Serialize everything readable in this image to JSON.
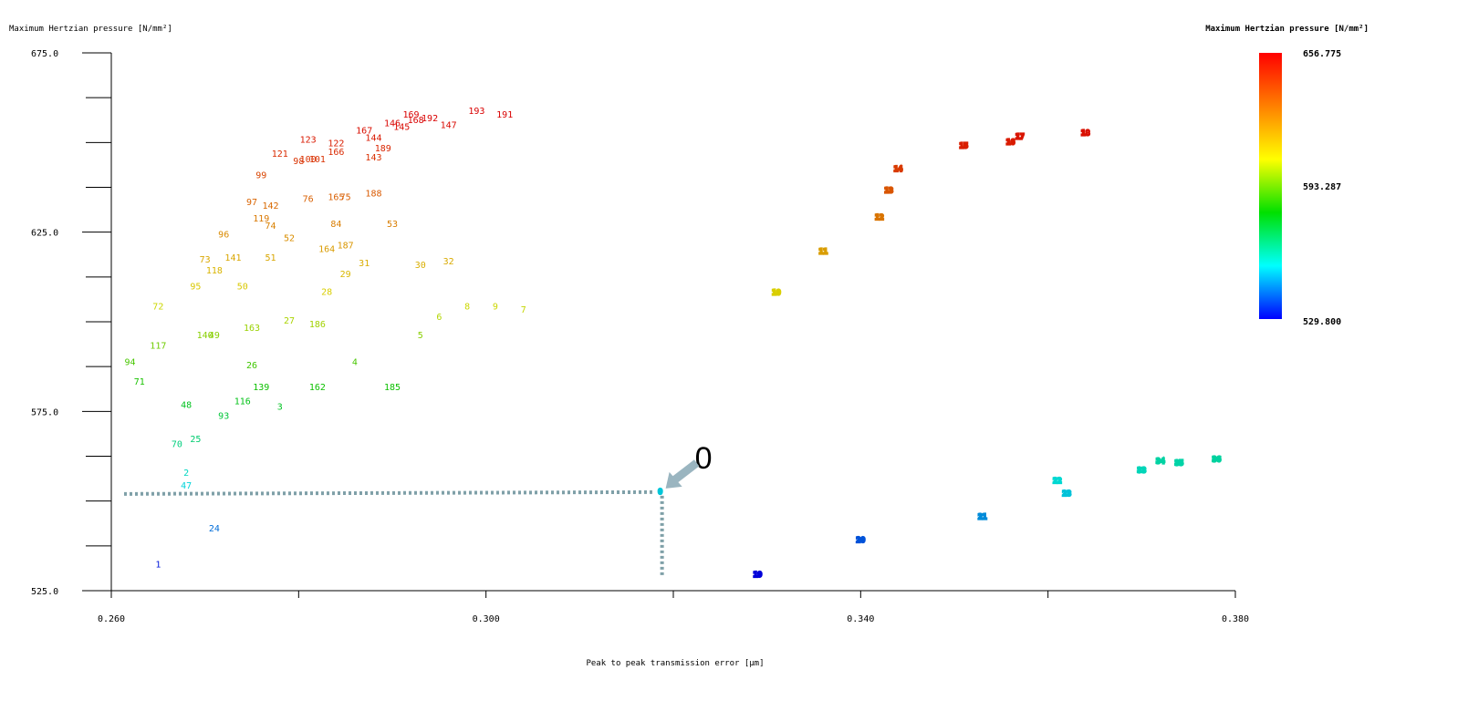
{
  "chart_data": {
    "type": "scatter",
    "title": "",
    "xlabel": "Peak to peak transmission error [μm]",
    "ylabel": "Maximum Hertzian pressure [N/mm²]",
    "xlim": [
      0.26,
      0.38
    ],
    "ylim": [
      525.0,
      675.0
    ],
    "x_ticks": [
      "0.260",
      "0.300",
      "0.340",
      "0.380"
    ],
    "y_ticks": [
      "675.0",
      "625.0",
      "575.0",
      "525.0"
    ],
    "colorbar": {
      "title": "Maximum Hertzian pressure [N/mm²]",
      "max": 656.775,
      "mid": 593.287,
      "min": 529.8,
      "max_label": "656.775",
      "mid_label": "593.287",
      "min_label": "529.800",
      "colors": [
        "#ff0000",
        "#ff8000",
        "#ffff00",
        "#00e000",
        "#00ffff",
        "#0000ff"
      ]
    },
    "annotation": {
      "label": "0",
      "x": 0.3186,
      "y": 553.0
    },
    "points": [
      {
        "label": "1",
        "x": 0.265,
        "y": 532.5
      },
      {
        "label": "24",
        "x": 0.271,
        "y": 542.5
      },
      {
        "label": "47",
        "x": 0.268,
        "y": 554.5
      },
      {
        "label": "2",
        "x": 0.268,
        "y": 558.0
      },
      {
        "label": "70",
        "x": 0.267,
        "y": 566.0
      },
      {
        "label": "25",
        "x": 0.269,
        "y": 567.5
      },
      {
        "label": "48",
        "x": 0.268,
        "y": 577.0
      },
      {
        "label": "93",
        "x": 0.272,
        "y": 574.0
      },
      {
        "label": "116",
        "x": 0.274,
        "y": 578.0
      },
      {
        "label": "3",
        "x": 0.278,
        "y": 576.5
      },
      {
        "label": "139",
        "x": 0.276,
        "y": 582.0
      },
      {
        "label": "162",
        "x": 0.282,
        "y": 582.0
      },
      {
        "label": "185",
        "x": 0.29,
        "y": 582.0
      },
      {
        "label": "71",
        "x": 0.263,
        "y": 583.5
      },
      {
        "label": "94",
        "x": 0.262,
        "y": 589.0
      },
      {
        "label": "26",
        "x": 0.275,
        "y": 588.0
      },
      {
        "label": "4",
        "x": 0.286,
        "y": 589.0
      },
      {
        "label": "117",
        "x": 0.265,
        "y": 593.5
      },
      {
        "label": "140",
        "x": 0.27,
        "y": 596.5
      },
      {
        "label": "49",
        "x": 0.271,
        "y": 596.5
      },
      {
        "label": "163",
        "x": 0.275,
        "y": 598.5
      },
      {
        "label": "27",
        "x": 0.279,
        "y": 600.5
      },
      {
        "label": "186",
        "x": 0.282,
        "y": 599.5
      },
      {
        "label": "5",
        "x": 0.293,
        "y": 596.5
      },
      {
        "label": "6",
        "x": 0.295,
        "y": 601.5
      },
      {
        "label": "8",
        "x": 0.298,
        "y": 604.5
      },
      {
        "label": "9",
        "x": 0.301,
        "y": 604.5
      },
      {
        "label": "7",
        "x": 0.304,
        "y": 603.5
      },
      {
        "label": "72",
        "x": 0.265,
        "y": 604.5
      },
      {
        "label": "95",
        "x": 0.269,
        "y": 610.0
      },
      {
        "label": "50",
        "x": 0.274,
        "y": 610.0
      },
      {
        "label": "28",
        "x": 0.283,
        "y": 608.5
      },
      {
        "label": "29",
        "x": 0.285,
        "y": 613.5
      },
      {
        "label": "73",
        "x": 0.27,
        "y": 617.5
      },
      {
        "label": "118",
        "x": 0.271,
        "y": 614.5
      },
      {
        "label": "141",
        "x": 0.273,
        "y": 618.0
      },
      {
        "label": "51",
        "x": 0.277,
        "y": 618.0
      },
      {
        "label": "31",
        "x": 0.287,
        "y": 616.5
      },
      {
        "label": "30",
        "x": 0.293,
        "y": 616.0
      },
      {
        "label": "32",
        "x": 0.296,
        "y": 617.0
      },
      {
        "label": "96",
        "x": 0.272,
        "y": 624.5
      },
      {
        "label": "52",
        "x": 0.279,
        "y": 623.5
      },
      {
        "label": "164",
        "x": 0.283,
        "y": 620.5
      },
      {
        "label": "187",
        "x": 0.285,
        "y": 621.5
      },
      {
        "label": "84",
        "x": 0.284,
        "y": 627.5
      },
      {
        "label": "53",
        "x": 0.29,
        "y": 627.5
      },
      {
        "label": "119",
        "x": 0.276,
        "y": 629.0
      },
      {
        "label": "74",
        "x": 0.277,
        "y": 627.0
      },
      {
        "label": "97",
        "x": 0.275,
        "y": 633.5
      },
      {
        "label": "142",
        "x": 0.277,
        "y": 632.5
      },
      {
        "label": "99",
        "x": 0.276,
        "y": 641.0
      },
      {
        "label": "76",
        "x": 0.281,
        "y": 634.5
      },
      {
        "label": "165",
        "x": 0.284,
        "y": 635.0
      },
      {
        "label": "75",
        "x": 0.285,
        "y": 635.0
      },
      {
        "label": "188",
        "x": 0.288,
        "y": 636.0
      },
      {
        "label": "121",
        "x": 0.278,
        "y": 647.0
      },
      {
        "label": "98",
        "x": 0.28,
        "y": 645.0
      },
      {
        "label": "100",
        "x": 0.281,
        "y": 645.5
      },
      {
        "label": "101",
        "x": 0.282,
        "y": 645.5
      },
      {
        "label": "123",
        "x": 0.281,
        "y": 651.0
      },
      {
        "label": "122",
        "x": 0.284,
        "y": 650.0
      },
      {
        "label": "166",
        "x": 0.284,
        "y": 647.5
      },
      {
        "label": "167",
        "x": 0.287,
        "y": 653.5
      },
      {
        "label": "144",
        "x": 0.288,
        "y": 651.5
      },
      {
        "label": "189",
        "x": 0.289,
        "y": 648.5
      },
      {
        "label": "143",
        "x": 0.288,
        "y": 646.0
      },
      {
        "label": "146",
        "x": 0.29,
        "y": 655.5
      },
      {
        "label": "145",
        "x": 0.291,
        "y": 654.5
      },
      {
        "label": "168",
        "x": 0.2925,
        "y": 656.5
      },
      {
        "label": "169",
        "x": 0.292,
        "y": 658.0
      },
      {
        "label": "192",
        "x": 0.294,
        "y": 657.0
      },
      {
        "label": "147",
        "x": 0.296,
        "y": 655.0
      },
      {
        "label": "193",
        "x": 0.299,
        "y": 659.0
      },
      {
        "label": "191",
        "x": 0.302,
        "y": 658.0
      },
      {
        "label": "10",
        "x": 0.331,
        "y": 608.5
      },
      {
        "label": "11",
        "x": 0.336,
        "y": 620.0
      },
      {
        "label": "12",
        "x": 0.342,
        "y": 629.5
      },
      {
        "label": "13",
        "x": 0.343,
        "y": 637.0
      },
      {
        "label": "14",
        "x": 0.344,
        "y": 643.0
      },
      {
        "label": "15",
        "x": 0.351,
        "y": 649.5
      },
      {
        "label": "16",
        "x": 0.356,
        "y": 650.5
      },
      {
        "label": "17",
        "x": 0.357,
        "y": 652.0
      },
      {
        "label": "18",
        "x": 0.364,
        "y": 653.0
      },
      {
        "label": "19",
        "x": 0.329,
        "y": 529.8
      },
      {
        "label": "20",
        "x": 0.34,
        "y": 539.5
      },
      {
        "label": "21",
        "x": 0.353,
        "y": 546.0
      },
      {
        "label": "22",
        "x": 0.361,
        "y": 556.0
      },
      {
        "label": "23",
        "x": 0.362,
        "y": 552.5
      },
      {
        "label": "33",
        "x": 0.37,
        "y": 559.0
      },
      {
        "label": "34",
        "x": 0.372,
        "y": 561.5
      },
      {
        "label": "35",
        "x": 0.374,
        "y": 561.0
      },
      {
        "label": "36",
        "x": 0.378,
        "y": 562.0
      },
      {
        "label": "0",
        "x": 0.3186,
        "y": 553.0
      }
    ]
  }
}
